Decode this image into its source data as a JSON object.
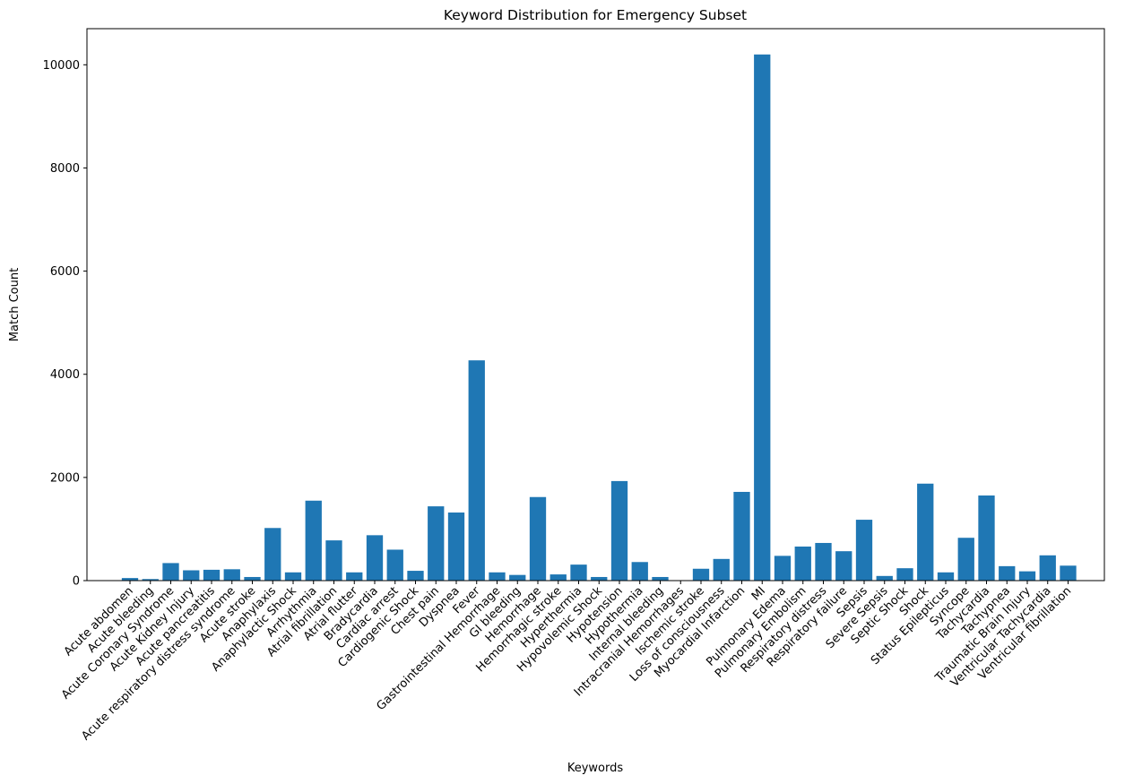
{
  "chart_data": {
    "type": "bar",
    "title": "Keyword Distribution for Emergency Subset",
    "xlabel": "Keywords",
    "ylabel": "Match Count",
    "ylim": [
      0,
      10700
    ],
    "yticks": [
      0,
      2000,
      4000,
      6000,
      8000,
      10000
    ],
    "grid": false,
    "legend": "none",
    "bar_color": "#1f77b4",
    "categories": [
      "Acute abdomen",
      "Acute bleeding",
      "Acute Coronary Syndrome",
      "Acute Kidney Injury",
      "Acute pancreatitis",
      "Acute respiratory distress syndrome",
      "Acute stroke",
      "Anaphylaxis",
      "Anaphylactic Shock",
      "Arrhythmia",
      "Atrial fibrillation",
      "Atrial flutter",
      "Bradycardia",
      "Cardiac arrest",
      "Cardiogenic Shock",
      "Chest pain",
      "Dyspnea",
      "Fever",
      "Gastrointestinal Hemorrhage",
      "GI bleeding",
      "Hemorrhage",
      "Hemorrhagic stroke",
      "Hyperthermia",
      "Hypovolemic Shock",
      "Hypotension",
      "Hypothermia",
      "Internal bleeding",
      "Intracranial Hemorrhages",
      "Ischemic stroke",
      "Loss of consciousness",
      "Myocardial Infarction",
      "MI",
      "Pulmonary Edema",
      "Pulmonary Embolism",
      "Respiratory distress",
      "Respiratory failure",
      "Sepsis",
      "Severe Sepsis",
      "Septic Shock",
      "Shock",
      "Status Epilepticus",
      "Syncope",
      "Tachycardia",
      "Tachypnea",
      "Traumatic Brain Injury",
      "Ventricular Tachycardia",
      "Ventricular fibrillation"
    ],
    "values": [
      50,
      30,
      340,
      200,
      210,
      220,
      70,
      1020,
      160,
      1550,
      780,
      160,
      880,
      600,
      190,
      1440,
      1320,
      4270,
      160,
      110,
      1620,
      120,
      310,
      70,
      1930,
      360,
      70,
      0,
      230,
      420,
      1720,
      10200,
      480,
      660,
      730,
      570,
      1180,
      90,
      240,
      1880,
      160,
      830,
      1650,
      280,
      180,
      490,
      290
    ]
  }
}
